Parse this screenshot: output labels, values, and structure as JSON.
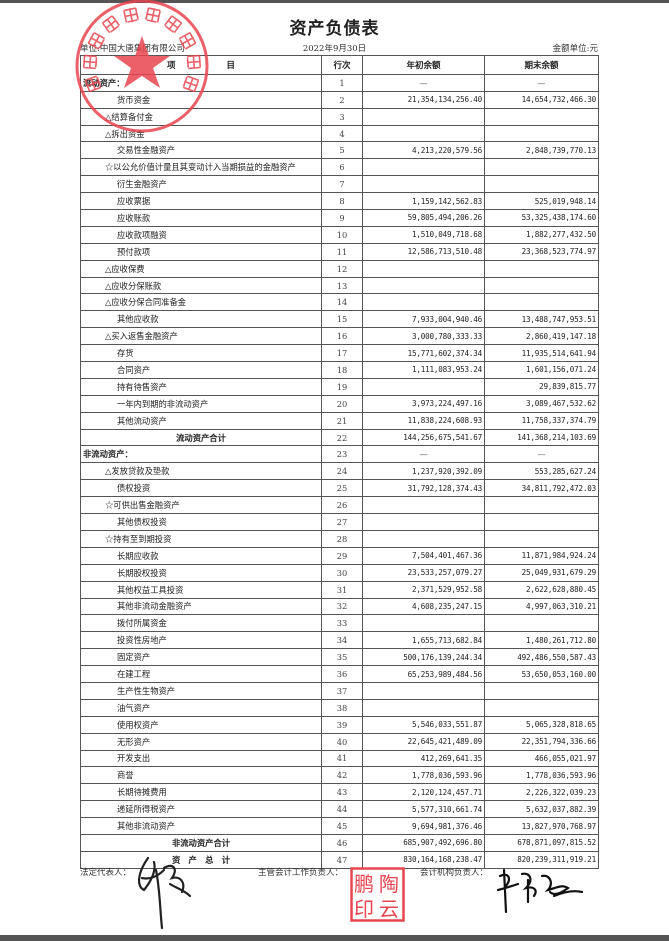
{
  "title": "资产负债表",
  "unit": "单位:中国大唐集团有限公司",
  "date": "2022年9月30日",
  "currency": "金额单位:元",
  "headers": {
    "item": "项　　　　　　目",
    "no": "行次",
    "begin": "年初余额",
    "end": "期末余额"
  },
  "rows": [
    {
      "label": "流动资产：",
      "no": "1",
      "begin": "—",
      "end": "—",
      "indent": 0
    },
    {
      "label": "货币资金",
      "no": "2",
      "begin": "21,354,134,256.40",
      "end": "14,654,732,466.30",
      "indent": 2
    },
    {
      "label": "△结算备付金",
      "no": "3",
      "begin": "",
      "end": "",
      "indent": 1
    },
    {
      "label": "△拆出资金",
      "no": "4",
      "begin": "",
      "end": "",
      "indent": 1
    },
    {
      "label": "交易性金融资产",
      "no": "5",
      "begin": "4,213,220,579.56",
      "end": "2,848,739,770.13",
      "indent": 2
    },
    {
      "label": "☆以公允价值计量且其变动计入当期损益的金融资产",
      "no": "6",
      "begin": "",
      "end": "",
      "indent": 1
    },
    {
      "label": "衍生金融资产",
      "no": "7",
      "begin": "",
      "end": "",
      "indent": 2
    },
    {
      "label": "应收票据",
      "no": "8",
      "begin": "1,159,142,562.83",
      "end": "525,019,948.14",
      "indent": 2
    },
    {
      "label": "应收账款",
      "no": "9",
      "begin": "59,805,494,206.26",
      "end": "53,325,438,174.60",
      "indent": 2
    },
    {
      "label": "应收款项融资",
      "no": "10",
      "begin": "1,510,049,718.68",
      "end": "1,882,277,432.50",
      "indent": 2
    },
    {
      "label": "预付款项",
      "no": "11",
      "begin": "12,586,713,510.48",
      "end": "23,368,523,774.97",
      "indent": 2
    },
    {
      "label": "△应收保费",
      "no": "12",
      "begin": "",
      "end": "",
      "indent": 1
    },
    {
      "label": "△应收分保账款",
      "no": "13",
      "begin": "",
      "end": "",
      "indent": 1
    },
    {
      "label": "△应收分保合同准备金",
      "no": "14",
      "begin": "",
      "end": "",
      "indent": 1
    },
    {
      "label": "其他应收款",
      "no": "15",
      "begin": "7,933,004,940.46",
      "end": "13,488,747,953.51",
      "indent": 2
    },
    {
      "label": "△买入返售金融资产",
      "no": "16",
      "begin": "3,000,780,333.33",
      "end": "2,860,419,147.18",
      "indent": 1
    },
    {
      "label": "存货",
      "no": "17",
      "begin": "15,771,602,374.34",
      "end": "11,935,514,641.94",
      "indent": 2
    },
    {
      "label": "合同资产",
      "no": "18",
      "begin": "1,111,083,953.24",
      "end": "1,601,156,071.24",
      "indent": 2
    },
    {
      "label": "持有待售资产",
      "no": "19",
      "begin": "",
      "end": "29,839,815.77",
      "indent": 2
    },
    {
      "label": "一年内到期的非流动资产",
      "no": "20",
      "begin": "3,973,224,497.16",
      "end": "3,089,467,532.62",
      "indent": 2
    },
    {
      "label": "其他流动资产",
      "no": "21",
      "begin": "11,838,224,608.93",
      "end": "11,758,337,374.79",
      "indent": 2
    },
    {
      "label": "流动资产合计",
      "no": "22",
      "begin": "144,256,675,541.67",
      "end": "141,368,214,103.69",
      "indent": "c"
    },
    {
      "label": "非流动资产：",
      "no": "23",
      "begin": "—",
      "end": "—",
      "indent": 0
    },
    {
      "label": "△发放贷款及垫款",
      "no": "24",
      "begin": "1,237,920,392.09",
      "end": "553,285,627.24",
      "indent": 1
    },
    {
      "label": "债权投资",
      "no": "25",
      "begin": "31,792,128,374.43",
      "end": "34,811,792,472.03",
      "indent": 2
    },
    {
      "label": "☆可供出售金融资产",
      "no": "26",
      "begin": "",
      "end": "",
      "indent": 1
    },
    {
      "label": "其他债权投资",
      "no": "27",
      "begin": "",
      "end": "",
      "indent": 2
    },
    {
      "label": "☆持有至到期投资",
      "no": "28",
      "begin": "",
      "end": "",
      "indent": 1
    },
    {
      "label": "长期应收款",
      "no": "29",
      "begin": "7,504,401,467.36",
      "end": "11,871,984,924.24",
      "indent": 2
    },
    {
      "label": "长期股权投资",
      "no": "30",
      "begin": "23,533,257,079.27",
      "end": "25,049,931,679.29",
      "indent": 2
    },
    {
      "label": "其他权益工具投资",
      "no": "31",
      "begin": "2,371,529,952.58",
      "end": "2,622,628,880.45",
      "indent": 2
    },
    {
      "label": "其他非流动金融资产",
      "no": "32",
      "begin": "4,608,235,247.15",
      "end": "4,997,063,310.21",
      "indent": 2
    },
    {
      "label": "拨付所属资金",
      "no": "33",
      "begin": "",
      "end": "",
      "indent": 2
    },
    {
      "label": "投资性房地产",
      "no": "34",
      "begin": "1,655,713,682.84",
      "end": "1,480,261,712.80",
      "indent": 2
    },
    {
      "label": "固定资产",
      "no": "35",
      "begin": "500,176,139,244.34",
      "end": "492,486,550,587.43",
      "indent": 2
    },
    {
      "label": "在建工程",
      "no": "36",
      "begin": "65,253,989,484.56",
      "end": "53,650,053,160.00",
      "indent": 2
    },
    {
      "label": "生产性生物资产",
      "no": "37",
      "begin": "",
      "end": "",
      "indent": 2
    },
    {
      "label": "油气资产",
      "no": "38",
      "begin": "",
      "end": "",
      "indent": 2
    },
    {
      "label": "使用权资产",
      "no": "39",
      "begin": "5,546,033,551.87",
      "end": "5,065,328,818.65",
      "indent": 2
    },
    {
      "label": "无形资产",
      "no": "40",
      "begin": "22,645,421,489.09",
      "end": "22,351,794,336.66",
      "indent": 2
    },
    {
      "label": "开发支出",
      "no": "41",
      "begin": "412,269,641.35",
      "end": "466,055,021.97",
      "indent": 2
    },
    {
      "label": "商誉",
      "no": "42",
      "begin": "1,778,036,593.96",
      "end": "1,778,036,593.96",
      "indent": 2
    },
    {
      "label": "长期待摊费用",
      "no": "43",
      "begin": "2,120,124,457.71",
      "end": "2,226,322,039.23",
      "indent": 2
    },
    {
      "label": "递延所得税资产",
      "no": "44",
      "begin": "5,577,310,661.74",
      "end": "5,632,037,882.39",
      "indent": 2
    },
    {
      "label": "其他非流动资产",
      "no": "45",
      "begin": "9,694,981,376.46",
      "end": "13,827,970,768.97",
      "indent": 2
    },
    {
      "label": "非流动资产合计",
      "no": "46",
      "begin": "685,907,492,696.80",
      "end": "678,871,097,815.52",
      "indent": "c"
    },
    {
      "label": "资　产　总　计",
      "no": "47",
      "begin": "830,164,168,238.47",
      "end": "820,239,311,919.21",
      "indent": "c"
    }
  ],
  "signatures": {
    "legal_rep": "法定代表人：",
    "accounting_head": "主管会计工作负责人：",
    "accounting_dept_head": "会计机构负责人："
  },
  "seal": {
    "text": "中国大唐集团有限公司",
    "code": "1101020273198",
    "color": "#e8454f"
  },
  "stamp": {
    "text": "陶鹏云印",
    "color": "#e8454f"
  }
}
